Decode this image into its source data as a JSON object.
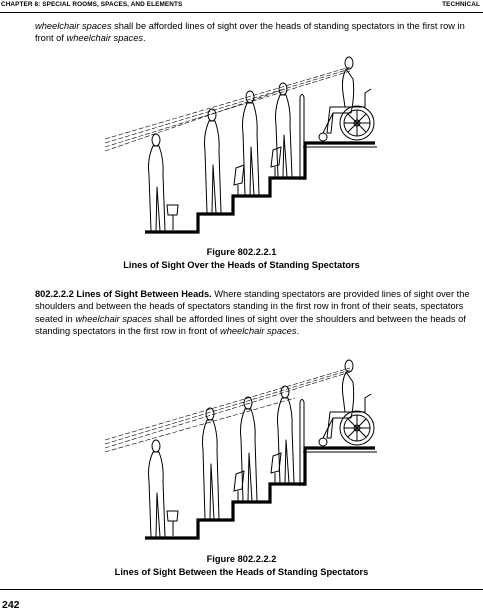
{
  "header": {
    "chapter": "CHAPTER 8: SPECIAL ROOMS, SPACES, AND ELEMENTS",
    "section": "TECHNICAL"
  },
  "para1": {
    "t1": "wheelchair spaces",
    "t2": " shall be afforded lines of sight over the heads of standing spectators in the first row in front of ",
    "t3": "wheelchair spaces",
    "t4": "."
  },
  "figure1": {
    "number": "Figure 802.2.2.1",
    "title": "Lines of Sight Over the Heads of Standing Spectators"
  },
  "para2": {
    "heading": "802.2.2.2 Lines of Sight Between Heads.",
    "t1": "  Where standing spectators are provided lines of sight over the shoulders and between the heads of spectators standing in the first row in front of their seats, spectators seated in ",
    "t2": "wheelchair spaces",
    "t3": " shall be afforded lines of sight over the shoulders and between the heads of standing spectators in the first row in front of ",
    "t4": "wheelchair spaces",
    "t5": "."
  },
  "figure2": {
    "number": "Figure 802.2.2.2",
    "title": "Lines of Sight Between the Heads of Standing Spectators"
  },
  "footer": {
    "page_number": "242"
  }
}
